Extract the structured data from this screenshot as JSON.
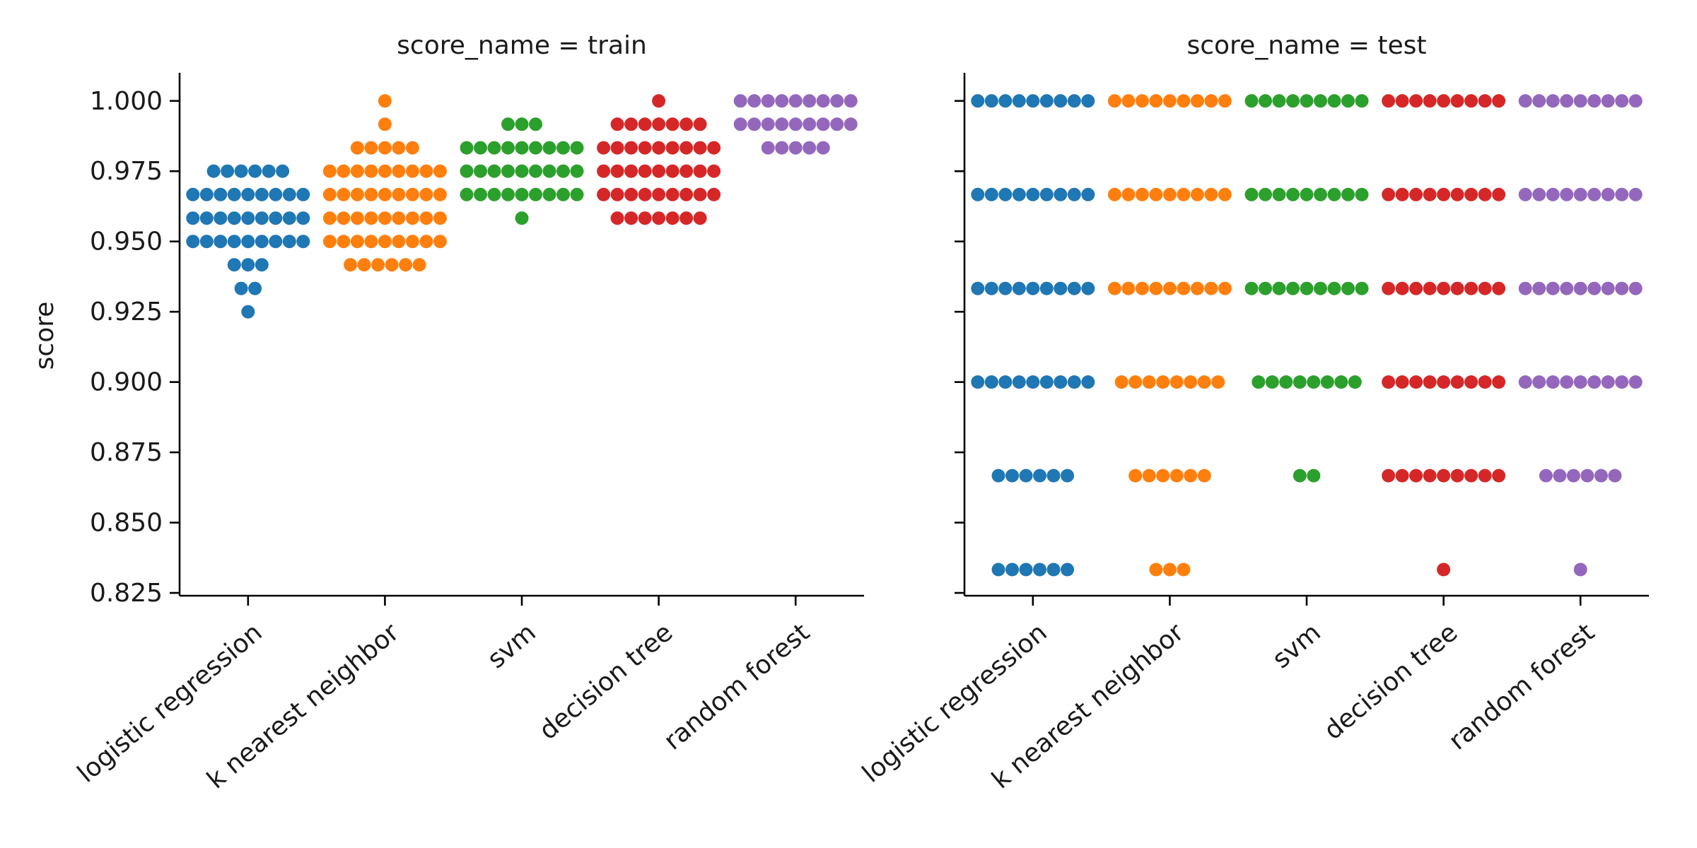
{
  "chart_data": {
    "type": "scatter",
    "style": "swarm",
    "grid": false,
    "ylabel": "score",
    "categories": [
      "logistic regression",
      "k nearest neighbor",
      "svm",
      "decision tree",
      "random forest"
    ],
    "yticks": [
      "0.825",
      "0.850",
      "0.875",
      "0.900",
      "0.925",
      "0.950",
      "0.975",
      "1.000"
    ],
    "ylim": [
      0.824,
      1.01
    ],
    "colors": [
      "#1f77b4",
      "#ff7f0e",
      "#2ca02c",
      "#d62728",
      "#9467bd"
    ],
    "panels": [
      {
        "title": "score_name = train",
        "series": [
          {
            "category": "logistic regression",
            "points": [
              {
                "y": 1.0,
                "count": 0
              },
              {
                "y": 0.975,
                "count": 6
              },
              {
                "y": 0.9667,
                "count": 9
              },
              {
                "y": 0.9583,
                "count": 9
              },
              {
                "y": 0.95,
                "count": 9
              },
              {
                "y": 0.9417,
                "count": 3
              },
              {
                "y": 0.9333,
                "count": 2
              },
              {
                "y": 0.925,
                "count": 1
              }
            ]
          },
          {
            "category": "k nearest neighbor",
            "points": [
              {
                "y": 1.0,
                "count": 1
              },
              {
                "y": 0.9917,
                "count": 1
              },
              {
                "y": 0.9833,
                "count": 5
              },
              {
                "y": 0.975,
                "count": 9
              },
              {
                "y": 0.9667,
                "count": 9
              },
              {
                "y": 0.9583,
                "count": 9
              },
              {
                "y": 0.95,
                "count": 9
              },
              {
                "y": 0.9417,
                "count": 6
              }
            ]
          },
          {
            "category": "svm",
            "points": [
              {
                "y": 0.9917,
                "count": 3
              },
              {
                "y": 0.9833,
                "count": 9
              },
              {
                "y": 0.975,
                "count": 9
              },
              {
                "y": 0.9667,
                "count": 9
              },
              {
                "y": 0.9583,
                "count": 1
              }
            ]
          },
          {
            "category": "decision tree",
            "points": [
              {
                "y": 1.0,
                "count": 1
              },
              {
                "y": 0.9917,
                "count": 7
              },
              {
                "y": 0.9833,
                "count": 9
              },
              {
                "y": 0.975,
                "count": 9
              },
              {
                "y": 0.9667,
                "count": 9
              },
              {
                "y": 0.9583,
                "count": 7
              }
            ]
          },
          {
            "category": "random forest",
            "points": [
              {
                "y": 1.0,
                "count": 9
              },
              {
                "y": 0.9917,
                "count": 9
              },
              {
                "y": 0.9833,
                "count": 5
              }
            ]
          }
        ]
      },
      {
        "title": "score_name = test",
        "series": [
          {
            "category": "logistic regression",
            "points": [
              {
                "y": 1.0,
                "count": 9
              },
              {
                "y": 0.9667,
                "count": 9
              },
              {
                "y": 0.9333,
                "count": 9
              },
              {
                "y": 0.9,
                "count": 9
              },
              {
                "y": 0.8667,
                "count": 6
              },
              {
                "y": 0.8333,
                "count": 6
              }
            ]
          },
          {
            "category": "k nearest neighbor",
            "points": [
              {
                "y": 1.0,
                "count": 9
              },
              {
                "y": 0.9667,
                "count": 9
              },
              {
                "y": 0.9333,
                "count": 9
              },
              {
                "y": 0.9,
                "count": 8
              },
              {
                "y": 0.8667,
                "count": 6
              },
              {
                "y": 0.8333,
                "count": 3
              }
            ]
          },
          {
            "category": "svm",
            "points": [
              {
                "y": 1.0,
                "count": 9
              },
              {
                "y": 0.9667,
                "count": 9
              },
              {
                "y": 0.9333,
                "count": 9
              },
              {
                "y": 0.9,
                "count": 8
              },
              {
                "y": 0.8667,
                "count": 2
              }
            ]
          },
          {
            "category": "decision tree",
            "points": [
              {
                "y": 1.0,
                "count": 9
              },
              {
                "y": 0.9667,
                "count": 9
              },
              {
                "y": 0.9333,
                "count": 9
              },
              {
                "y": 0.9,
                "count": 9
              },
              {
                "y": 0.8667,
                "count": 9
              },
              {
                "y": 0.8333,
                "count": 1
              }
            ]
          },
          {
            "category": "random forest",
            "points": [
              {
                "y": 1.0,
                "count": 9
              },
              {
                "y": 0.9667,
                "count": 9
              },
              {
                "y": 0.9333,
                "count": 9
              },
              {
                "y": 0.9,
                "count": 9
              },
              {
                "y": 0.8667,
                "count": 6
              },
              {
                "y": 0.8333,
                "count": 1
              }
            ]
          }
        ]
      }
    ]
  }
}
